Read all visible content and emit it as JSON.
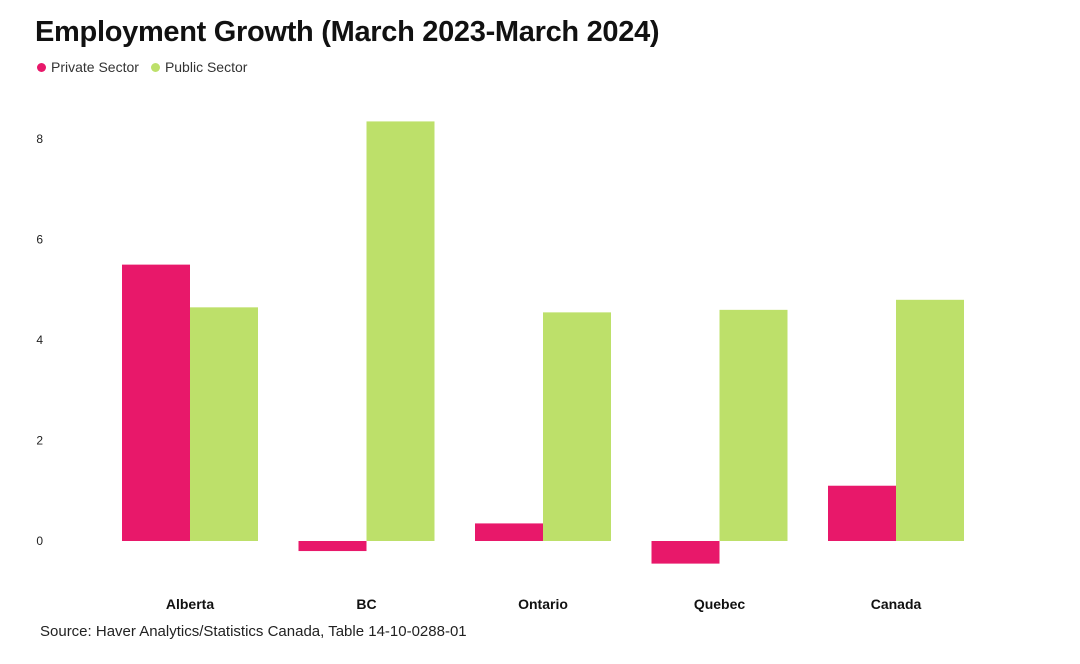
{
  "chart_data": {
    "type": "bar",
    "title": "Employment Growth (March 2023-March 2024)",
    "xlabel": "",
    "ylabel": "",
    "categories": [
      "Alberta",
      "BC",
      "Ontario",
      "Quebec",
      "Canada"
    ],
    "series": [
      {
        "name": "Private Sector",
        "color": "#e8186a",
        "values": [
          5.5,
          -0.2,
          0.35,
          -0.45,
          1.1
        ]
      },
      {
        "name": "Public Sector",
        "color": "#bde06a",
        "values": [
          4.65,
          8.35,
          4.55,
          4.6,
          4.8
        ]
      }
    ],
    "yticks": [
      0,
      2,
      4,
      6,
      8
    ],
    "ylim": [
      -0.6,
      8.6
    ],
    "grid": false,
    "legend": "top-left",
    "source": "Source: Haver Analytics/Statistics Canada, Table 14-10-0288-01"
  }
}
